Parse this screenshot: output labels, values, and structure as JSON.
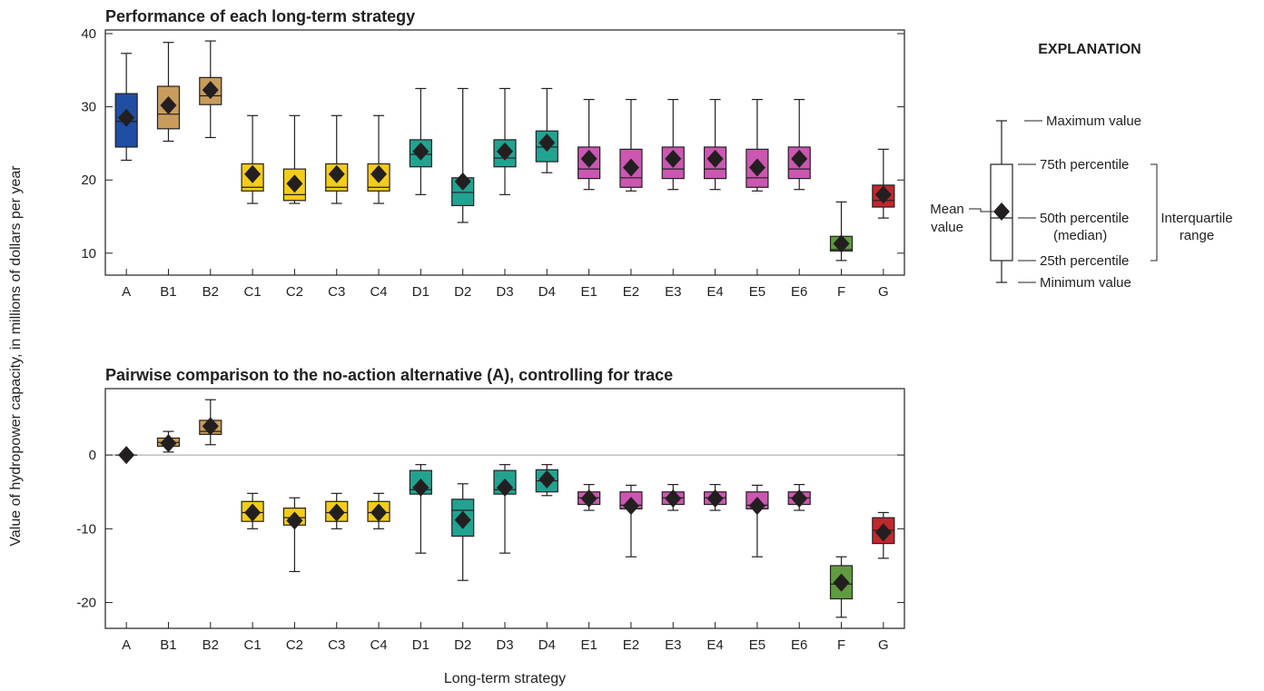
{
  "colors": {
    "A": "#1f4ea3",
    "B": "#c89d5b",
    "C": "#f6cc1a",
    "D": "#21a391",
    "E": "#cb57b1",
    "F": "#5f9b3f",
    "G": "#c1272d",
    "mean_marker": "#231f20",
    "axis": "#231f20"
  },
  "xlabel": "Long-term strategy",
  "ylabel": "Value of hydropower capacity, in millions of dollars per year",
  "chart_data": [
    {
      "type": "box",
      "title": "Performance of each long-term strategy",
      "ylim": [
        7,
        40.5
      ],
      "yticks": [
        "10",
        "20",
        "30",
        "40"
      ],
      "ytick_values": [
        10,
        20,
        30,
        40
      ],
      "zero_line": false,
      "categories": [
        "A",
        "B1",
        "B2",
        "C1",
        "C2",
        "C3",
        "C4",
        "D1",
        "D2",
        "D3",
        "D4",
        "E1",
        "E2",
        "E3",
        "E4",
        "E5",
        "E6",
        "F",
        "G"
      ],
      "groups": [
        "A",
        "B",
        "B",
        "C",
        "C",
        "C",
        "C",
        "D",
        "D",
        "D",
        "D",
        "E",
        "E",
        "E",
        "E",
        "E",
        "E",
        "F",
        "G"
      ],
      "min": [
        22.7,
        25.3,
        25.8,
        16.8,
        16.8,
        16.8,
        16.8,
        18.0,
        14.2,
        18.0,
        21.0,
        18.7,
        18.5,
        18.7,
        18.7,
        18.5,
        18.7,
        9.0,
        14.8
      ],
      "q1": [
        24.5,
        27.0,
        30.3,
        18.5,
        17.2,
        18.5,
        18.5,
        21.8,
        16.5,
        21.8,
        22.5,
        20.2,
        19.0,
        20.2,
        20.2,
        19.0,
        20.2,
        10.3,
        16.3
      ],
      "median": [
        28.0,
        29.0,
        31.5,
        19.0,
        18.0,
        19.0,
        19.0,
        23.5,
        18.3,
        23.0,
        24.5,
        21.5,
        20.3,
        21.5,
        21.5,
        20.3,
        21.5,
        10.5,
        17.2
      ],
      "q3": [
        31.8,
        32.8,
        34.0,
        22.2,
        21.5,
        22.2,
        22.2,
        25.5,
        20.3,
        25.5,
        26.7,
        24.5,
        24.2,
        24.5,
        24.5,
        24.2,
        24.5,
        12.3,
        19.3
      ],
      "max": [
        37.3,
        38.8,
        39.0,
        28.8,
        28.8,
        28.8,
        28.8,
        32.5,
        32.5,
        32.5,
        32.5,
        31.0,
        31.0,
        31.0,
        31.0,
        31.0,
        31.0,
        17.0,
        24.2
      ],
      "mean": [
        28.5,
        30.2,
        32.3,
        20.8,
        19.5,
        20.8,
        20.8,
        23.9,
        19.8,
        23.9,
        25.1,
        22.9,
        21.7,
        22.9,
        22.9,
        21.7,
        22.9,
        11.3,
        18.0
      ]
    },
    {
      "type": "box",
      "title": "Pairwise comparison to the no-action alternative (A), controlling for trace",
      "ylim": [
        -23.5,
        9.0
      ],
      "yticks": [
        "0",
        "-10",
        "-20"
      ],
      "ytick_values": [
        0,
        -10,
        -20
      ],
      "zero_line": true,
      "categories": [
        "A",
        "B1",
        "B2",
        "C1",
        "C2",
        "C3",
        "C4",
        "D1",
        "D2",
        "D3",
        "D4",
        "E1",
        "E2",
        "E3",
        "E4",
        "E5",
        "E6",
        "F",
        "G"
      ],
      "groups": [
        "A",
        "B",
        "B",
        "C",
        "C",
        "C",
        "C",
        "D",
        "D",
        "D",
        "D",
        "E",
        "E",
        "E",
        "E",
        "E",
        "E",
        "F",
        "G"
      ],
      "min": [
        0.0,
        0.4,
        1.4,
        -10.0,
        -15.8,
        -10.0,
        -10.0,
        -13.3,
        -17.0,
        -13.3,
        -5.5,
        -7.5,
        -13.8,
        -7.5,
        -7.5,
        -13.8,
        -7.5,
        -22.0,
        -14.0
      ],
      "q1": [
        0.0,
        1.2,
        2.8,
        -9.0,
        -9.5,
        -9.0,
        -9.0,
        -5.3,
        -11.0,
        -5.3,
        -5.0,
        -6.7,
        -7.3,
        -6.7,
        -6.7,
        -7.3,
        -6.7,
        -19.5,
        -12.0
      ],
      "median": [
        0.0,
        1.7,
        3.2,
        -7.8,
        -8.5,
        -7.8,
        -7.8,
        -4.7,
        -7.5,
        -4.7,
        -3.5,
        -5.8,
        -6.8,
        -5.8,
        -5.8,
        -6.8,
        -5.8,
        -17.5,
        -10.2
      ],
      "q3": [
        0.0,
        2.3,
        4.7,
        -6.3,
        -7.2,
        -6.3,
        -6.3,
        -2.1,
        -6.0,
        -2.1,
        -2.0,
        -5.0,
        -5.0,
        -5.0,
        -5.0,
        -5.0,
        -5.0,
        -15.0,
        -8.5
      ],
      "max": [
        0.0,
        3.2,
        7.5,
        -5.2,
        -5.8,
        -5.2,
        -5.2,
        -1.3,
        -3.9,
        -1.3,
        -1.3,
        -4.0,
        -4.1,
        -4.0,
        -4.0,
        -4.1,
        -4.0,
        -13.8,
        -7.8
      ],
      "mean": [
        0.0,
        1.6,
        3.9,
        -7.8,
        -8.9,
        -7.8,
        -7.8,
        -4.4,
        -8.8,
        -4.4,
        -3.3,
        -5.9,
        -6.9,
        -5.9,
        -5.9,
        -6.9,
        -5.9,
        -17.3,
        -10.5
      ]
    }
  ],
  "legend": {
    "title": "EXPLANATION",
    "max_label": "Maximum value",
    "p75_label": "75th percentile",
    "p50_label": "50th percentile",
    "p50_sub": "(median)",
    "p25_label": "25th percentile",
    "min_label": "Minimum value",
    "mean_label_1": "Mean",
    "mean_label_2": "value",
    "iqr_label_1": "Interquartile",
    "iqr_label_2": "range"
  }
}
